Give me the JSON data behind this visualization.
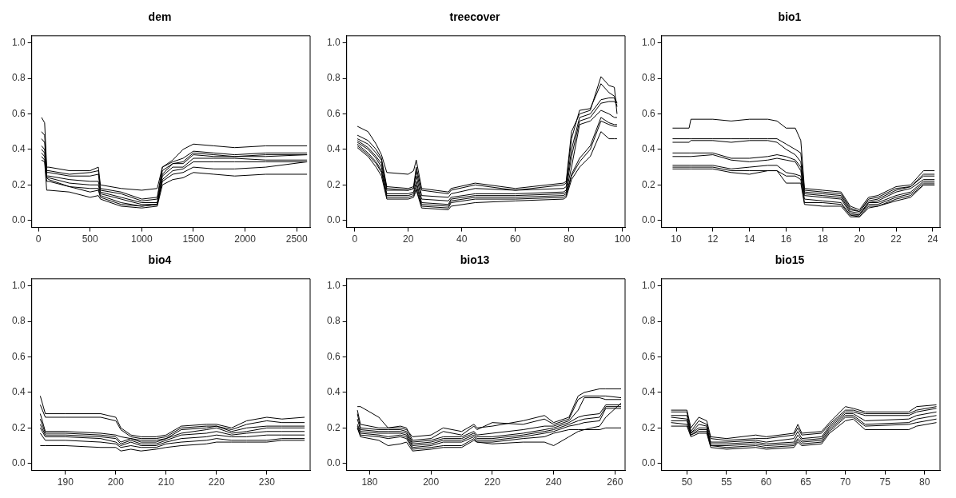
{
  "chart_data": [
    {
      "type": "line",
      "title": "dem",
      "marker": "none",
      "line_style": "solid",
      "xlim": [
        -65,
        2630
      ],
      "ylim": [
        -0.04,
        1.04
      ],
      "xticks": [
        0,
        500,
        1000,
        1500,
        2000,
        2500
      ],
      "yticks": [
        {
          "value": 0,
          "label": "0.0"
        },
        {
          "value": 0.2,
          "label": "0.2"
        },
        {
          "value": 0.4,
          "label": "0.4"
        },
        {
          "value": 0.6,
          "label": "0.6"
        },
        {
          "value": 0.8,
          "label": "0.8"
        },
        {
          "value": 1,
          "label": "1.0"
        }
      ],
      "x": [
        30,
        60,
        80,
        100,
        300,
        500,
        580,
        600,
        800,
        1000,
        1150,
        1200,
        1300,
        1400,
        1500,
        1700,
        1900,
        2200,
        2600
      ],
      "series": [
        {
          "color": "#000000",
          "values": [
            0.58,
            0.55,
            0.3,
            0.3,
            0.28,
            0.28,
            0.3,
            0.2,
            0.18,
            0.17,
            0.18,
            0.3,
            0.34,
            0.4,
            0.43,
            0.42,
            0.41,
            0.42,
            0.42
          ]
        },
        {
          "color": "#000000",
          "values": [
            0.5,
            0.48,
            0.28,
            0.28,
            0.26,
            0.27,
            0.28,
            0.18,
            0.16,
            0.12,
            0.13,
            0.3,
            0.33,
            0.35,
            0.39,
            0.38,
            0.37,
            0.38,
            0.38
          ]
        },
        {
          "color": "#000000",
          "values": [
            0.46,
            0.44,
            0.27,
            0.27,
            0.25,
            0.25,
            0.26,
            0.17,
            0.15,
            0.11,
            0.12,
            0.28,
            0.32,
            0.33,
            0.38,
            0.37,
            0.36,
            0.37,
            0.37
          ]
        },
        {
          "color": "#000000",
          "values": [
            0.42,
            0.4,
            0.25,
            0.25,
            0.23,
            0.22,
            0.22,
            0.16,
            0.13,
            0.1,
            0.1,
            0.26,
            0.32,
            0.32,
            0.37,
            0.36,
            0.36,
            0.36,
            0.37
          ]
        },
        {
          "color": "#000000",
          "values": [
            0.4,
            0.38,
            0.24,
            0.24,
            0.21,
            0.2,
            0.2,
            0.15,
            0.12,
            0.09,
            0.09,
            0.25,
            0.3,
            0.3,
            0.35,
            0.35,
            0.35,
            0.34,
            0.34
          ]
        },
        {
          "color": "#000000",
          "values": [
            0.36,
            0.34,
            0.22,
            0.22,
            0.19,
            0.18,
            0.18,
            0.14,
            0.1,
            0.08,
            0.09,
            0.23,
            0.28,
            0.29,
            0.33,
            0.33,
            0.33,
            0.33,
            0.33
          ]
        },
        {
          "color": "#000000",
          "values": [
            0.38,
            0.36,
            0.24,
            0.23,
            0.19,
            0.16,
            0.17,
            0.13,
            0.09,
            0.08,
            0.09,
            0.22,
            0.26,
            0.27,
            0.3,
            0.29,
            0.29,
            0.3,
            0.33
          ]
        },
        {
          "color": "#000000",
          "values": [
            0.34,
            0.33,
            0.17,
            0.17,
            0.16,
            0.13,
            0.14,
            0.12,
            0.08,
            0.07,
            0.08,
            0.2,
            0.23,
            0.24,
            0.27,
            0.26,
            0.25,
            0.26,
            0.26
          ]
        }
      ]
    },
    {
      "type": "line",
      "title": "treecover",
      "marker": "none",
      "line_style": "solid",
      "xlim": [
        -3,
        101
      ],
      "ylim": [
        -0.04,
        1.04
      ],
      "xticks": [
        0,
        20,
        40,
        60,
        80,
        100
      ],
      "yticks": [
        {
          "value": 0,
          "label": "0.0"
        },
        {
          "value": 0.2,
          "label": "0.2"
        },
        {
          "value": 0.4,
          "label": "0.4"
        },
        {
          "value": 0.6,
          "label": "0.6"
        },
        {
          "value": 0.8,
          "label": "0.8"
        },
        {
          "value": 1,
          "label": "1.0"
        }
      ],
      "x": [
        1,
        5,
        8,
        10,
        12,
        20,
        22,
        23,
        25,
        35,
        36,
        45,
        60,
        78,
        79,
        81,
        84,
        88,
        92,
        95,
        97,
        98
      ],
      "series": [
        {
          "color": "#000000",
          "values": [
            0.53,
            0.5,
            0.43,
            0.37,
            0.27,
            0.26,
            0.28,
            0.34,
            0.18,
            0.16,
            0.18,
            0.21,
            0.18,
            0.21,
            0.22,
            0.5,
            0.6,
            0.62,
            0.81,
            0.76,
            0.75,
            0.6
          ]
        },
        {
          "color": "#000000",
          "values": [
            0.48,
            0.45,
            0.4,
            0.35,
            0.19,
            0.18,
            0.19,
            0.3,
            0.17,
            0.15,
            0.17,
            0.2,
            0.17,
            0.2,
            0.21,
            0.46,
            0.62,
            0.63,
            0.77,
            0.72,
            0.7,
            0.66
          ]
        },
        {
          "color": "#000000",
          "values": [
            0.46,
            0.43,
            0.38,
            0.34,
            0.18,
            0.17,
            0.18,
            0.28,
            0.14,
            0.13,
            0.15,
            0.18,
            0.17,
            0.18,
            0.19,
            0.4,
            0.58,
            0.6,
            0.68,
            0.69,
            0.69,
            0.64
          ]
        },
        {
          "color": "#000000",
          "values": [
            0.45,
            0.41,
            0.36,
            0.32,
            0.17,
            0.17,
            0.18,
            0.25,
            0.12,
            0.11,
            0.13,
            0.15,
            0.15,
            0.16,
            0.17,
            0.36,
            0.56,
            0.58,
            0.66,
            0.67,
            0.67,
            0.65
          ]
        },
        {
          "color": "#000000",
          "values": [
            0.44,
            0.4,
            0.35,
            0.3,
            0.15,
            0.15,
            0.16,
            0.22,
            0.1,
            0.09,
            0.12,
            0.14,
            0.14,
            0.15,
            0.16,
            0.3,
            0.54,
            0.56,
            0.62,
            0.6,
            0.58,
            0.58
          ]
        },
        {
          "color": "#000000",
          "values": [
            0.43,
            0.38,
            0.33,
            0.28,
            0.14,
            0.14,
            0.15,
            0.2,
            0.09,
            0.08,
            0.11,
            0.13,
            0.13,
            0.14,
            0.15,
            0.26,
            0.35,
            0.42,
            0.58,
            0.55,
            0.54,
            0.54
          ]
        },
        {
          "color": "#000000",
          "values": [
            0.42,
            0.37,
            0.32,
            0.27,
            0.13,
            0.13,
            0.14,
            0.18,
            0.08,
            0.07,
            0.1,
            0.12,
            0.12,
            0.13,
            0.14,
            0.25,
            0.33,
            0.4,
            0.56,
            0.54,
            0.53,
            0.53
          ]
        },
        {
          "color": "#000000",
          "values": [
            0.41,
            0.36,
            0.3,
            0.25,
            0.12,
            0.12,
            0.13,
            0.17,
            0.07,
            0.06,
            0.08,
            0.1,
            0.11,
            0.12,
            0.13,
            0.23,
            0.3,
            0.36,
            0.5,
            0.46,
            0.46,
            0.46
          ]
        }
      ]
    },
    {
      "type": "line",
      "title": "bio1",
      "marker": "none",
      "line_style": "solid",
      "xlim": [
        9.2,
        24.4
      ],
      "ylim": [
        -0.04,
        1.04
      ],
      "xticks": [
        10,
        12,
        14,
        16,
        18,
        20,
        22,
        24
      ],
      "yticks": [
        {
          "value": 0,
          "label": "0.0"
        },
        {
          "value": 0.2,
          "label": "0.2"
        },
        {
          "value": 0.4,
          "label": "0.4"
        },
        {
          "value": 0.6,
          "label": "0.6"
        },
        {
          "value": 0.8,
          "label": "0.8"
        },
        {
          "value": 1,
          "label": "1.0"
        }
      ],
      "x": [
        9.8,
        10.7,
        10.8,
        12,
        13,
        14,
        15,
        15.5,
        16,
        16.5,
        16.8,
        17,
        18,
        19,
        19.5,
        20,
        20.5,
        21,
        22,
        22.8,
        23.5,
        24.1
      ],
      "series": [
        {
          "color": "#000000",
          "values": [
            0.52,
            0.52,
            0.57,
            0.57,
            0.56,
            0.57,
            0.57,
            0.56,
            0.52,
            0.52,
            0.45,
            0.18,
            0.17,
            0.16,
            0.08,
            0.06,
            0.13,
            0.14,
            0.19,
            0.2,
            0.28,
            0.28
          ]
        },
        {
          "color": "#000000",
          "values": [
            0.46,
            0.46,
            0.46,
            0.46,
            0.46,
            0.46,
            0.46,
            0.46,
            0.43,
            0.4,
            0.38,
            0.17,
            0.16,
            0.15,
            0.07,
            0.05,
            0.12,
            0.13,
            0.18,
            0.19,
            0.26,
            0.26
          ]
        },
        {
          "color": "#000000",
          "values": [
            0.44,
            0.44,
            0.45,
            0.45,
            0.44,
            0.45,
            0.45,
            0.44,
            0.4,
            0.37,
            0.33,
            0.16,
            0.15,
            0.14,
            0.06,
            0.05,
            0.11,
            0.12,
            0.17,
            0.19,
            0.25,
            0.25
          ]
        },
        {
          "color": "#000000",
          "values": [
            0.38,
            0.38,
            0.38,
            0.38,
            0.35,
            0.35,
            0.36,
            0.37,
            0.36,
            0.34,
            0.3,
            0.15,
            0.14,
            0.13,
            0.05,
            0.04,
            0.1,
            0.11,
            0.16,
            0.18,
            0.23,
            0.23
          ]
        },
        {
          "color": "#000000",
          "values": [
            0.36,
            0.36,
            0.36,
            0.37,
            0.34,
            0.33,
            0.34,
            0.35,
            0.34,
            0.33,
            0.28,
            0.14,
            0.13,
            0.12,
            0.04,
            0.03,
            0.1,
            0.1,
            0.14,
            0.16,
            0.22,
            0.22
          ]
        },
        {
          "color": "#000000",
          "values": [
            0.31,
            0.31,
            0.31,
            0.31,
            0.29,
            0.3,
            0.31,
            0.31,
            0.27,
            0.26,
            0.25,
            0.12,
            0.11,
            0.1,
            0.03,
            0.03,
            0.09,
            0.09,
            0.13,
            0.15,
            0.21,
            0.21
          ]
        },
        {
          "color": "#000000",
          "values": [
            0.3,
            0.3,
            0.3,
            0.3,
            0.28,
            0.28,
            0.28,
            0.28,
            0.25,
            0.25,
            0.23,
            0.1,
            0.1,
            0.09,
            0.03,
            0.02,
            0.08,
            0.08,
            0.12,
            0.14,
            0.2,
            0.2
          ]
        },
        {
          "color": "#000000",
          "values": [
            0.29,
            0.29,
            0.29,
            0.29,
            0.27,
            0.26,
            0.28,
            0.28,
            0.21,
            0.21,
            0.21,
            0.09,
            0.08,
            0.08,
            0.02,
            0.02,
            0.07,
            0.08,
            0.11,
            0.13,
            0.2,
            0.2
          ]
        }
      ]
    },
    {
      "type": "line",
      "title": "bio4",
      "marker": "none",
      "line_style": "solid",
      "xlim": [
        183.3,
        238.6
      ],
      "ylim": [
        -0.04,
        1.04
      ],
      "xticks": [
        190,
        200,
        210,
        220,
        230
      ],
      "yticks": [
        {
          "value": 0,
          "label": "0.0"
        },
        {
          "value": 0.2,
          "label": "0.2"
        },
        {
          "value": 0.4,
          "label": "0.4"
        },
        {
          "value": 0.6,
          "label": "0.6"
        },
        {
          "value": 0.8,
          "label": "0.8"
        },
        {
          "value": 1,
          "label": "1.0"
        }
      ],
      "x": [
        185,
        186,
        190,
        197,
        200,
        201,
        203,
        205,
        208,
        210,
        213,
        218,
        220,
        223,
        226,
        230,
        233,
        237.5
      ],
      "series": [
        {
          "color": "#000000",
          "values": [
            0.38,
            0.28,
            0.28,
            0.28,
            0.26,
            0.2,
            0.16,
            0.15,
            0.15,
            0.16,
            0.21,
            0.22,
            0.22,
            0.2,
            0.24,
            0.26,
            0.25,
            0.26
          ]
        },
        {
          "color": "#000000",
          "values": [
            0.33,
            0.26,
            0.26,
            0.26,
            0.24,
            0.19,
            0.15,
            0.14,
            0.14,
            0.15,
            0.2,
            0.21,
            0.21,
            0.19,
            0.22,
            0.24,
            0.23,
            0.23
          ]
        },
        {
          "color": "#000000",
          "values": [
            0.28,
            0.18,
            0.18,
            0.17,
            0.16,
            0.15,
            0.14,
            0.13,
            0.13,
            0.14,
            0.19,
            0.2,
            0.21,
            0.18,
            0.2,
            0.21,
            0.21,
            0.21
          ]
        },
        {
          "color": "#000000",
          "values": [
            0.25,
            0.17,
            0.17,
            0.16,
            0.15,
            0.12,
            0.14,
            0.12,
            0.12,
            0.14,
            0.17,
            0.19,
            0.2,
            0.17,
            0.18,
            0.2,
            0.2,
            0.2
          ]
        },
        {
          "color": "#000000",
          "values": [
            0.22,
            0.16,
            0.16,
            0.15,
            0.14,
            0.11,
            0.13,
            0.11,
            0.11,
            0.13,
            0.16,
            0.17,
            0.18,
            0.16,
            0.17,
            0.18,
            0.18,
            0.18
          ]
        },
        {
          "color": "#000000",
          "values": [
            0.2,
            0.15,
            0.15,
            0.14,
            0.12,
            0.1,
            0.12,
            0.1,
            0.1,
            0.12,
            0.14,
            0.15,
            0.16,
            0.15,
            0.15,
            0.16,
            0.16,
            0.16
          ]
        },
        {
          "color": "#000000",
          "values": [
            0.17,
            0.13,
            0.13,
            0.12,
            0.11,
            0.09,
            0.1,
            0.09,
            0.09,
            0.11,
            0.12,
            0.13,
            0.14,
            0.13,
            0.13,
            0.13,
            0.14,
            0.14
          ]
        },
        {
          "color": "#000000",
          "values": [
            0.1,
            0.1,
            0.1,
            0.09,
            0.09,
            0.07,
            0.08,
            0.07,
            0.08,
            0.09,
            0.1,
            0.11,
            0.12,
            0.12,
            0.12,
            0.12,
            0.13,
            0.13
          ]
        }
      ]
    },
    {
      "type": "line",
      "title": "bio13",
      "marker": "none",
      "line_style": "solid",
      "xlim": [
        172.5,
        263.3
      ],
      "ylim": [
        -0.04,
        1.04
      ],
      "xticks": [
        180,
        200,
        220,
        240,
        260
      ],
      "yticks": [
        {
          "value": 0,
          "label": "0.0"
        },
        {
          "value": 0.2,
          "label": "0.2"
        },
        {
          "value": 0.4,
          "label": "0.4"
        },
        {
          "value": 0.6,
          "label": "0.6"
        },
        {
          "value": 0.8,
          "label": "0.8"
        },
        {
          "value": 1,
          "label": "1.0"
        }
      ],
      "x": [
        176,
        177,
        183,
        186,
        190,
        192,
        194,
        200,
        204,
        210,
        214,
        215,
        220,
        230,
        237,
        240,
        245,
        248,
        250,
        255,
        257,
        262
      ],
      "series": [
        {
          "color": "#000000",
          "values": [
            0.32,
            0.32,
            0.26,
            0.2,
            0.2,
            0.19,
            0.15,
            0.16,
            0.2,
            0.18,
            0.22,
            0.2,
            0.21,
            0.24,
            0.27,
            0.23,
            0.26,
            0.38,
            0.4,
            0.42,
            0.42,
            0.42
          ]
        },
        {
          "color": "#000000",
          "values": [
            0.3,
            0.22,
            0.2,
            0.2,
            0.21,
            0.2,
            0.13,
            0.14,
            0.18,
            0.16,
            0.21,
            0.19,
            0.23,
            0.22,
            0.25,
            0.22,
            0.25,
            0.36,
            0.38,
            0.38,
            0.38,
            0.37
          ]
        },
        {
          "color": "#000000",
          "values": [
            0.28,
            0.2,
            0.19,
            0.19,
            0.19,
            0.18,
            0.12,
            0.13,
            0.15,
            0.15,
            0.18,
            0.16,
            0.17,
            0.19,
            0.21,
            0.21,
            0.24,
            0.3,
            0.37,
            0.37,
            0.36,
            0.36
          ]
        },
        {
          "color": "#000000",
          "values": [
            0.25,
            0.19,
            0.18,
            0.18,
            0.18,
            0.17,
            0.11,
            0.12,
            0.14,
            0.14,
            0.17,
            0.15,
            0.15,
            0.17,
            0.19,
            0.2,
            0.23,
            0.26,
            0.27,
            0.28,
            0.33,
            0.33
          ]
        },
        {
          "color": "#000000",
          "values": [
            0.22,
            0.18,
            0.17,
            0.17,
            0.17,
            0.16,
            0.1,
            0.11,
            0.13,
            0.13,
            0.16,
            0.14,
            0.14,
            0.16,
            0.18,
            0.19,
            0.22,
            0.24,
            0.25,
            0.26,
            0.32,
            0.32
          ]
        },
        {
          "color": "#000000",
          "values": [
            0.21,
            0.17,
            0.16,
            0.15,
            0.16,
            0.15,
            0.09,
            0.1,
            0.12,
            0.12,
            0.15,
            0.13,
            0.13,
            0.15,
            0.17,
            0.18,
            0.21,
            0.22,
            0.23,
            0.24,
            0.31,
            0.31
          ]
        },
        {
          "color": "#000000",
          "values": [
            0.2,
            0.16,
            0.15,
            0.14,
            0.15,
            0.14,
            0.08,
            0.09,
            0.1,
            0.1,
            0.14,
            0.12,
            0.12,
            0.14,
            0.15,
            0.17,
            0.19,
            0.19,
            0.19,
            0.19,
            0.2,
            0.2
          ]
        },
        {
          "color": "#000000",
          "values": [
            0.2,
            0.15,
            0.13,
            0.1,
            0.11,
            0.12,
            0.07,
            0.08,
            0.09,
            0.09,
            0.13,
            0.12,
            0.11,
            0.12,
            0.12,
            0.1,
            0.15,
            0.18,
            0.19,
            0.21,
            0.26,
            0.34
          ]
        }
      ]
    },
    {
      "type": "line",
      "title": "bio15",
      "marker": "none",
      "line_style": "solid",
      "xlim": [
        46.8,
        81.95
      ],
      "ylim": [
        -0.04,
        1.04
      ],
      "xticks": [
        50,
        55,
        60,
        65,
        70,
        75,
        80
      ],
      "yticks": [
        {
          "value": 0,
          "label": "0.0"
        },
        {
          "value": 0.2,
          "label": "0.2"
        },
        {
          "value": 0.4,
          "label": "0.4"
        },
        {
          "value": 0.6,
          "label": "0.6"
        },
        {
          "value": 0.8,
          "label": "0.8"
        },
        {
          "value": 1,
          "label": "1.0"
        }
      ],
      "x": [
        48,
        50,
        50.5,
        51.5,
        52.5,
        53,
        55,
        58.7,
        60,
        63.5,
        64,
        64.5,
        67,
        68,
        70,
        71,
        72.5,
        78,
        79,
        81.5
      ],
      "series": [
        {
          "color": "#000000",
          "values": [
            0.3,
            0.3,
            0.2,
            0.26,
            0.24,
            0.15,
            0.14,
            0.16,
            0.15,
            0.17,
            0.22,
            0.17,
            0.18,
            0.23,
            0.32,
            0.31,
            0.29,
            0.29,
            0.32,
            0.33
          ]
        },
        {
          "color": "#000000",
          "values": [
            0.29,
            0.29,
            0.18,
            0.24,
            0.22,
            0.14,
            0.13,
            0.14,
            0.14,
            0.16,
            0.2,
            0.16,
            0.17,
            0.22,
            0.3,
            0.3,
            0.28,
            0.28,
            0.3,
            0.32
          ]
        },
        {
          "color": "#000000",
          "values": [
            0.27,
            0.27,
            0.17,
            0.22,
            0.21,
            0.12,
            0.12,
            0.13,
            0.12,
            0.14,
            0.18,
            0.14,
            0.15,
            0.21,
            0.29,
            0.29,
            0.27,
            0.27,
            0.29,
            0.31
          ]
        },
        {
          "color": "#000000",
          "values": [
            0.26,
            0.25,
            0.17,
            0.2,
            0.2,
            0.11,
            0.11,
            0.12,
            0.11,
            0.12,
            0.16,
            0.13,
            0.14,
            0.2,
            0.28,
            0.28,
            0.24,
            0.25,
            0.27,
            0.29
          ]
        },
        {
          "color": "#000000",
          "values": [
            0.24,
            0.24,
            0.16,
            0.19,
            0.19,
            0.1,
            0.1,
            0.11,
            0.1,
            0.11,
            0.14,
            0.12,
            0.13,
            0.19,
            0.27,
            0.27,
            0.22,
            0.23,
            0.25,
            0.27
          ]
        },
        {
          "color": "#000000",
          "values": [
            0.23,
            0.22,
            0.16,
            0.18,
            0.18,
            0.1,
            0.09,
            0.1,
            0.09,
            0.1,
            0.13,
            0.11,
            0.12,
            0.18,
            0.26,
            0.26,
            0.21,
            0.22,
            0.23,
            0.25
          ]
        },
        {
          "color": "#000000",
          "values": [
            0.21,
            0.21,
            0.15,
            0.17,
            0.17,
            0.09,
            0.08,
            0.09,
            0.08,
            0.09,
            0.12,
            0.1,
            0.11,
            0.17,
            0.24,
            0.25,
            0.19,
            0.19,
            0.21,
            0.23
          ]
        }
      ]
    }
  ]
}
